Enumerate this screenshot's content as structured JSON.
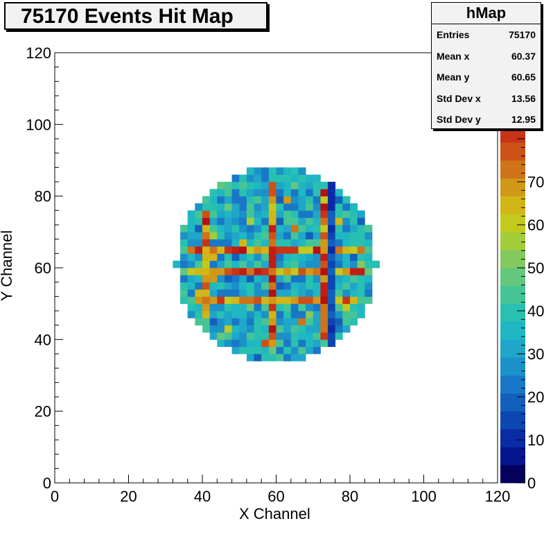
{
  "title": "75170 Events Hit Map",
  "stats": {
    "name": "hMap",
    "rows": [
      {
        "label": "Entries",
        "value": "75170"
      },
      {
        "label": "Mean x",
        "value": "60.37"
      },
      {
        "label": "Mean y",
        "value": "60.65"
      },
      {
        "label": "Std Dev x",
        "value": "13.56"
      },
      {
        "label": "Std Dev y",
        "value": "12.95"
      }
    ]
  },
  "chart_data": {
    "type": "heatmap",
    "title": "75170 Events Hit Map",
    "xlabel": "X Channel",
    "ylabel": "Y Channel",
    "xlim": [
      0,
      120
    ],
    "ylim": [
      0,
      120
    ],
    "x_ticks": [
      "0",
      "20",
      "40",
      "60",
      "80",
      "100",
      "120"
    ],
    "y_ticks": [
      "0",
      "20",
      "40",
      "60",
      "80",
      "100",
      "120"
    ],
    "z_ticks": [
      "0",
      "10",
      "20",
      "30",
      "40",
      "50",
      "60",
      "70"
    ],
    "zlim": [
      0,
      100
    ],
    "bin_width": 2,
    "circle": {
      "center_x": 60,
      "center_y": 61,
      "radius": 27
    },
    "bright_columns": [
      41,
      59,
      73
    ],
    "bright_rows": [
      51,
      59,
      65
    ],
    "dark_columns": [
      60,
      75
    ],
    "dark_rows": [
      60,
      62
    ],
    "typical_value_range": [
      20,
      45
    ],
    "palette": [
      "#04005b",
      "#06168f",
      "#0b2aa5",
      "#0c46b0",
      "#1260bb",
      "#1878c7",
      "#1c91c8",
      "#1fa6c9",
      "#1fb7c2",
      "#28c0b0",
      "#45c596",
      "#63c77d",
      "#83c960",
      "#a3cd3a",
      "#c3c91d",
      "#d2b618",
      "#d29818",
      "#d07318",
      "#cd5218",
      "#c93417",
      "#c21d15",
      "#b51012",
      "#a80a0e",
      "#9e070c"
    ]
  }
}
